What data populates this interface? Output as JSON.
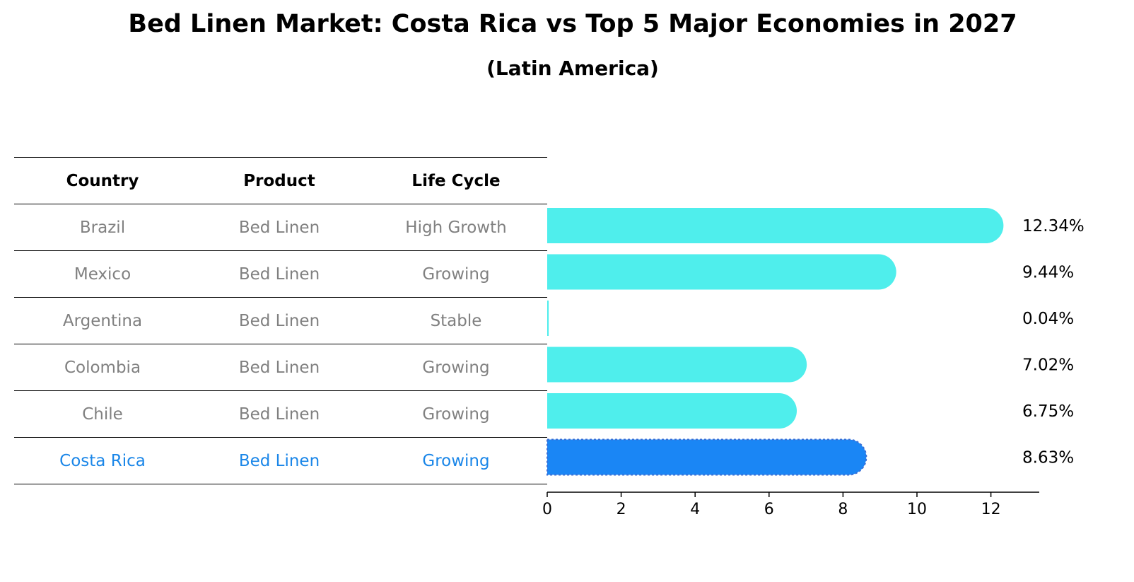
{
  "header": {
    "title": "Bed Linen Market: Costa Rica vs Top 5 Major Economies in 2027",
    "subtitle": "(Latin America)"
  },
  "table": {
    "columns": [
      "Country",
      "Product",
      "Life Cycle"
    ],
    "rows": [
      {
        "country": "Brazil",
        "product": "Bed Linen",
        "life_cycle": "High Growth"
      },
      {
        "country": "Mexico",
        "product": "Bed Linen",
        "life_cycle": "Growing"
      },
      {
        "country": "Argentina",
        "product": "Bed Linen",
        "life_cycle": "Stable"
      },
      {
        "country": "Colombia",
        "product": "Bed Linen",
        "life_cycle": "Growing"
      },
      {
        "country": "Chile",
        "product": "Bed Linen",
        "life_cycle": "Growing"
      },
      {
        "country": "Costa Rica",
        "product": "Bed Linen",
        "life_cycle": "Growing"
      }
    ],
    "highlight_color": "#1a86e8",
    "text_color": "#808080"
  },
  "chart_data": {
    "type": "bar",
    "orientation": "horizontal",
    "title": "Bed Linen Market: Costa Rica vs Top 5 Major Economies in 2027",
    "subtitle": "(Latin America)",
    "categories": [
      "Brazil",
      "Mexico",
      "Argentina",
      "Colombia",
      "Chile",
      "Costa Rica"
    ],
    "values": [
      12.34,
      9.44,
      0.04,
      7.02,
      6.75,
      8.63
    ],
    "value_labels": [
      "12.34%",
      "9.44%",
      "0.04%",
      "7.02%",
      "6.75%",
      "8.63%"
    ],
    "highlight": "Costa Rica",
    "xlim": [
      0,
      13
    ],
    "xticks": [
      0,
      2,
      4,
      6,
      8,
      10,
      12
    ],
    "xlabel": "",
    "ylabel": "",
    "grid": false,
    "colors": {
      "default": "#4feeec",
      "highlight": "#1a86f5",
      "highlight_edge": "#3a6fd6"
    }
  }
}
